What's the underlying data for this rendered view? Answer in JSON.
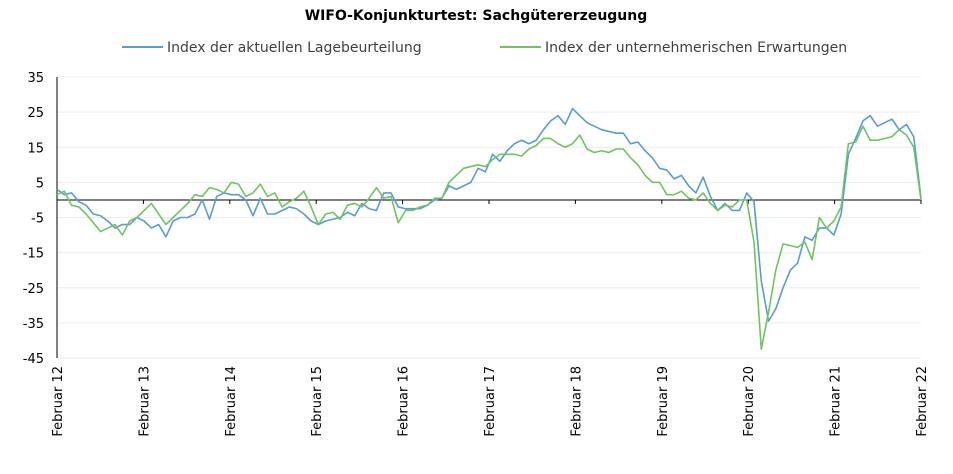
{
  "chart_data": {
    "type": "line",
    "title": "WIFO-Konjunkturtest: Sachgütererzeugung",
    "ylim": [
      -45,
      35
    ],
    "yticks": [
      35,
      25,
      15,
      5,
      -5,
      -15,
      -25,
      -35,
      -45
    ],
    "x_tick_labels": [
      "Februar 12",
      "Februar 13",
      "Februar 14",
      "Februar 15",
      "Februar 16",
      "Februar 17",
      "Februar 18",
      "Februar 19",
      "Februar 20",
      "Februar 21",
      "Februar 22"
    ],
    "x_start": "2012-02",
    "x_end": "2022-02",
    "grid": true,
    "legend_position": "top",
    "series": [
      {
        "name": "Index der aktuellen Lagebeurteilung",
        "color": "#5b9bd5",
        "values": [
          3,
          1.5,
          2,
          -0.5,
          -1.5,
          -4,
          -4.5,
          -6,
          -8,
          -7,
          -7,
          -5,
          -6,
          -8,
          -7,
          -10.5,
          -6,
          -5,
          -5,
          -4,
          0,
          -5.5,
          1,
          2,
          1.5,
          1.5,
          0,
          -4.5,
          0.5,
          -4,
          -4,
          -3,
          -2,
          -2.5,
          -4,
          -6,
          -7,
          -6,
          -5.5,
          -5,
          -3.5,
          -4.5,
          -1,
          -2.5,
          -3,
          2,
          2,
          -2,
          -2.5,
          -2.5,
          -2.5,
          -1.5,
          0,
          0.5,
          4,
          3,
          4,
          5,
          9,
          8,
          13,
          11,
          14,
          16,
          17,
          16,
          17,
          20,
          22.5,
          24,
          21.5,
          26,
          24,
          22,
          21,
          20,
          19.5,
          19,
          19,
          16,
          16.5,
          14,
          12,
          9,
          8.5,
          6,
          7,
          4,
          2,
          6.5,
          1,
          -3,
          -1,
          -3,
          -3,
          2,
          -0.5,
          -23,
          -34.5,
          -31,
          -25,
          -20,
          -18,
          -10.5,
          -11.5,
          -8,
          -8,
          -10,
          -4,
          13,
          17.5,
          22.5,
          24,
          21,
          22,
          23,
          20,
          21.5,
          18,
          0.5
        ]
      },
      {
        "name": "Index der unternehmerischen Erwartungen",
        "color": "#70c45f",
        "values": [
          1.5,
          2.5,
          -1.5,
          -2,
          -4,
          -6.5,
          -9,
          -8,
          -7,
          -10,
          -6,
          -5,
          -3,
          -1,
          -4,
          -7,
          -5,
          -3,
          -1,
          1.5,
          1,
          3.5,
          3,
          2,
          5,
          4.5,
          1,
          2,
          4.5,
          1,
          2,
          -2,
          -0.5,
          0.5,
          2.5,
          -2,
          -7,
          -4,
          -3.5,
          -5.5,
          -1.5,
          -1,
          -2,
          0.5,
          3.5,
          0.5,
          1,
          -6.5,
          -3,
          -3,
          -2,
          -1.5,
          0.5,
          0.5,
          5,
          7,
          9,
          9.5,
          10,
          9.5,
          11.5,
          13,
          13,
          13,
          12.5,
          14.5,
          15.5,
          17.5,
          17.5,
          16,
          15,
          16,
          18.5,
          14.5,
          13.5,
          14,
          13.5,
          14.5,
          14.5,
          12,
          10,
          7,
          5,
          5,
          1.5,
          1.5,
          2.5,
          0.5,
          0,
          2,
          -1,
          -3,
          -1.5,
          -2,
          0,
          0,
          -12,
          -42.5,
          -32,
          -20,
          -12.5,
          -13,
          -13.5,
          -12,
          -17,
          -5,
          -8,
          -6,
          -2,
          16,
          16.5,
          21,
          17,
          17,
          17.5,
          18,
          20,
          18.5,
          15,
          0
        ]
      }
    ]
  }
}
